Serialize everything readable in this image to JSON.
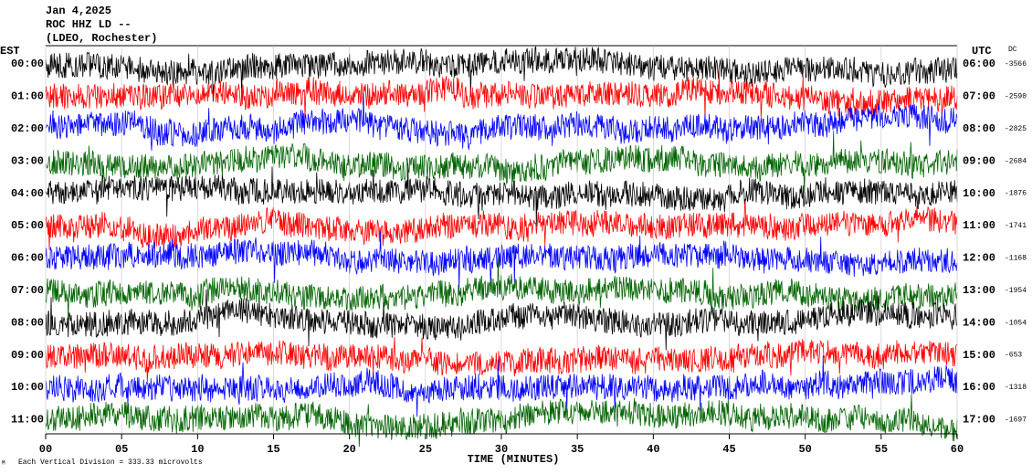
{
  "chart_data": {
    "type": "helicorder",
    "title": "Jan 4,2025",
    "station": "ROC HHZ LD --",
    "location": "(LDEO, Rochester)",
    "left_axis_label": "EST",
    "right_axis_label": "UTC",
    "dc_label": "DC",
    "colors": [
      "#000000",
      "#ff0000",
      "#0000ff",
      "#006400"
    ],
    "rows": [
      {
        "est": "00:00",
        "utc": "06:00",
        "dc": -3566
      },
      {
        "est": "01:00",
        "utc": "07:00",
        "dc": -2590
      },
      {
        "est": "02:00",
        "utc": "08:00",
        "dc": -2825
      },
      {
        "est": "03:00",
        "utc": "09:00",
        "dc": -2684
      },
      {
        "est": "04:00",
        "utc": "10:00",
        "dc": -1876
      },
      {
        "est": "05:00",
        "utc": "11:00",
        "dc": -1741
      },
      {
        "est": "06:00",
        "utc": "12:00",
        "dc": -1168
      },
      {
        "est": "07:00",
        "utc": "13:00",
        "dc": -1954
      },
      {
        "est": "08:00",
        "utc": "14:00",
        "dc": -1054
      },
      {
        "est": "09:00",
        "utc": "15:00",
        "dc": -653
      },
      {
        "est": "10:00",
        "utc": "16:00",
        "dc": -1318
      },
      {
        "est": "11:00",
        "utc": "17:00",
        "dc": -1697
      }
    ],
    "xlabel": "TIME (MINUTES)",
    "xlim": [
      0,
      60
    ],
    "xticks": [
      {
        "value": 0,
        "label": "00"
      },
      {
        "value": 5,
        "label": "05"
      },
      10,
      15,
      20,
      25,
      30,
      35,
      40,
      45,
      50,
      55,
      60
    ],
    "footnote": "Each Vertical Division =  333.33 microvolts"
  }
}
